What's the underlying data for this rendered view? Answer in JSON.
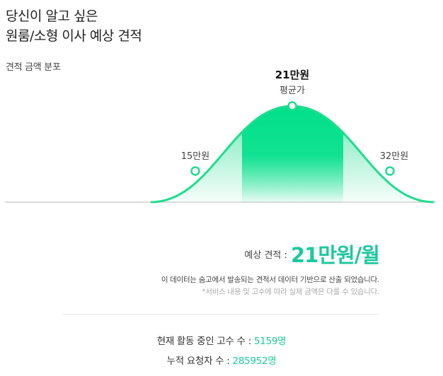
{
  "header": {
    "title_line1": "당신이 알고 싶은",
    "title_line2": "원룸/소형 이사 예상 견적"
  },
  "chart": {
    "subtitle": "견적 금액 분포",
    "average_value": "21만원",
    "average_label": "평균가",
    "low_label": "15만원",
    "high_label": "32만원"
  },
  "chart_data": {
    "type": "area",
    "x": [
      15,
      21,
      32
    ],
    "x_labels": [
      "15만원",
      "21만원",
      "32만원"
    ],
    "y": [
      0.55,
      1.0,
      0.55
    ],
    "annotations": [
      "평균가"
    ],
    "colors": {
      "curve": "#20dc8e",
      "highlight": "#00e08a"
    }
  },
  "estimate": {
    "label": "예상 견적 :",
    "value": "21만원/월",
    "note": "이 데이터는 숨고에서 발송되는 견적서 데이터 기반으로 산출 되었습니다.",
    "disclaimer": "*서비스 내용 및 고수에 따라 실제 금액은 다를 수 있습니다."
  },
  "stats": {
    "pros_label": "현재 활동 중인 고수 수 :",
    "pros_value": "5159명",
    "requests_label": "누적 요청자 수 :",
    "requests_value": "285952명"
  },
  "colors": {
    "accent": "#1cc99d",
    "curve": "#20dc8e"
  }
}
